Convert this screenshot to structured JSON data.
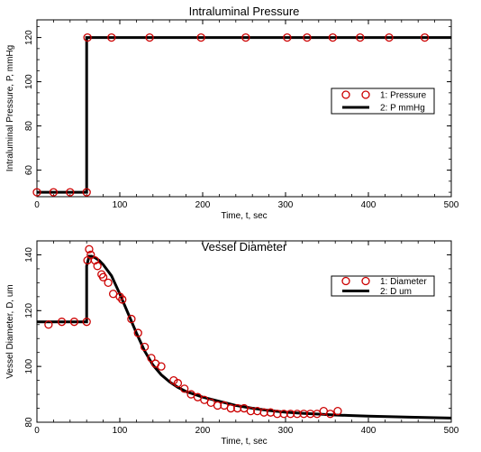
{
  "colors": {
    "marker": "#cc0000",
    "line": "#000000",
    "background": "#ffffff"
  },
  "chart_data": [
    {
      "type": "line",
      "title": "Intraluminal Pressure",
      "xlabel": "Time, t, sec",
      "ylabel": "Intraluminal Pressure, P, mmHg",
      "xlim": [
        0,
        500
      ],
      "ylim": [
        48,
        128
      ],
      "xticks": [
        0,
        100,
        200,
        300,
        400,
        500
      ],
      "yticks": [
        60,
        80,
        100,
        120
      ],
      "legend": {
        "placement": "right",
        "entries": [
          "1: Pressure",
          "2: P mmHg"
        ]
      },
      "series": [
        {
          "name": "1: Pressure",
          "kind": "markers",
          "x": [
            0,
            20,
            40,
            60,
            61,
            90,
            136,
            198,
            252,
            302,
            326,
            357,
            390,
            425,
            468
          ],
          "y": [
            50,
            50,
            50,
            50,
            120,
            120,
            120,
            120,
            120,
            120,
            120,
            120,
            120,
            120,
            120
          ]
        },
        {
          "name": "2: P mmHg",
          "kind": "line",
          "x": [
            0,
            60,
            60,
            500
          ],
          "y": [
            50,
            50,
            120,
            120
          ]
        }
      ]
    },
    {
      "type": "line",
      "title": "Vessel Diameter",
      "xlabel": "Time, t, sec",
      "ylabel": "Vessel Diameter, D, um",
      "xlim": [
        0,
        500
      ],
      "ylim": [
        80,
        145
      ],
      "xticks": [
        0,
        100,
        200,
        300,
        400,
        500
      ],
      "yticks": [
        80,
        100,
        120,
        140
      ],
      "legend": {
        "placement": "top-right",
        "entries": [
          "1: Diameter",
          "2: D um"
        ]
      },
      "series": [
        {
          "name": "1: Diameter",
          "kind": "markers",
          "x": [
            14,
            30,
            45,
            60,
            61,
            63,
            65,
            70,
            73,
            78,
            80,
            86,
            92,
            100,
            103,
            114,
            122,
            130,
            138,
            143,
            150,
            165,
            170,
            178,
            186,
            194,
            202,
            210,
            218,
            226,
            234,
            242,
            250,
            258,
            266,
            274,
            282,
            290,
            298,
            306,
            314,
            322,
            330,
            338,
            346,
            354,
            363
          ],
          "y": [
            115,
            116,
            116,
            116,
            138,
            142,
            140,
            138,
            136,
            133,
            132,
            130,
            126,
            125,
            124,
            117,
            112,
            107,
            103,
            101,
            100,
            95,
            94,
            92,
            90,
            89,
            88,
            87,
            86,
            86,
            85,
            85,
            85,
            84,
            84,
            83.5,
            83.5,
            83,
            83,
            83,
            83,
            83,
            83,
            83,
            84,
            83,
            84
          ]
        },
        {
          "name": "2: D um",
          "kind": "line",
          "x": [
            0,
            60,
            60,
            63,
            66,
            70,
            75,
            80,
            90,
            100,
            110,
            120,
            130,
            140,
            150,
            160,
            170,
            180,
            190,
            200,
            220,
            240,
            260,
            280,
            300,
            320,
            340,
            360,
            380,
            400,
            450,
            500
          ],
          "y": [
            116,
            116,
            136,
            139.5,
            139.5,
            139,
            138,
            136.5,
            132.5,
            126,
            119,
            112,
            105.5,
            100.5,
            97,
            94.5,
            92.5,
            91,
            90,
            89,
            87.5,
            86,
            85,
            84.2,
            83.6,
            83.2,
            82.9,
            82.6,
            82.4,
            82.2,
            81.8,
            81.5
          ]
        }
      ]
    }
  ]
}
